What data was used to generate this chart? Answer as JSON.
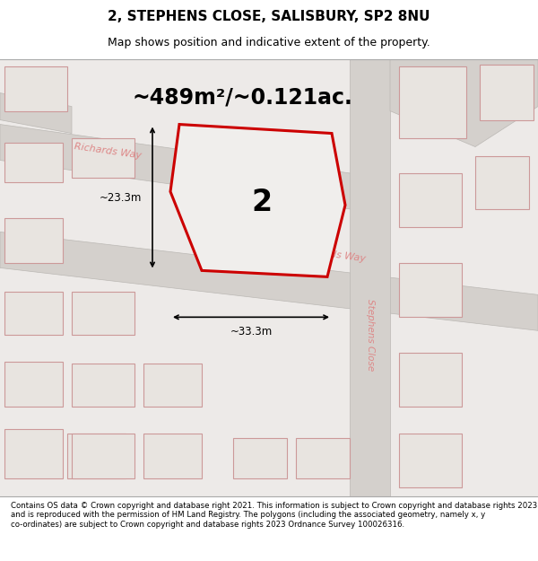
{
  "title": "2, STEPHENS CLOSE, SALISBURY, SP2 8NU",
  "subtitle": "Map shows position and indicative extent of the property.",
  "area_text": "~489m²/~0.121ac.",
  "label_number": "2",
  "dim_width": "~33.3m",
  "dim_height": "~23.3m",
  "footer": "Contains OS data © Crown copyright and database right 2021. This information is subject to Crown copyright and database rights 2023 and is reproduced with the permission of HM Land Registry. The polygons (including the associated geometry, namely x, y co-ordinates) are subject to Crown copyright and database rights 2023 Ordnance Survey 100026316.",
  "bg_color": "#edeae8",
  "road_color": "#d4d0cc",
  "road_edge": "#bbb8b4",
  "plot_line_color": "#cc0000",
  "plot_fill_color": "#f0eeec",
  "building_fill": "#e8e4e0",
  "building_edge": "#cc9999",
  "road_label_color": "#dd8888",
  "title_color": "#000000",
  "footer_color": "#000000"
}
